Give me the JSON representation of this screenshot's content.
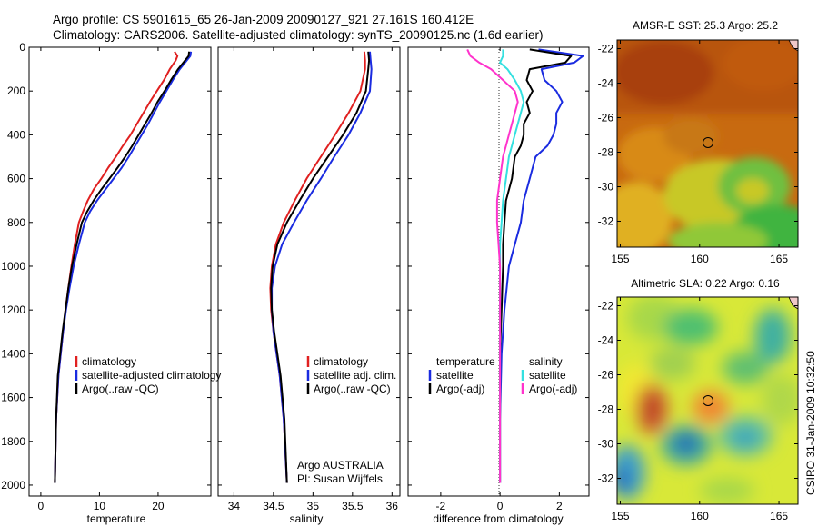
{
  "header": {
    "line1": "Argo profile: CS 5901615_65 26-Jan-2009 20090127_921 27.161S 160.412E",
    "line2": "Climatology: CARS2006. Satellite-adjusted climatology: synTS_20090125.nc (1.6d earlier)"
  },
  "side_credit": "CSIRO 31-Jan-2009 10:32:50",
  "colors": {
    "climatology": "#e02020",
    "satellite": "#1a2be0",
    "argo": "#000000",
    "argo_salinity_diff": "#ff33cc",
    "satellite_salinity_diff": "#33e0e0"
  },
  "chart_data": [
    {
      "type": "line",
      "panel": "temperature",
      "xlabel": "temperature",
      "ylabel": "",
      "xlim": [
        -2,
        29
      ],
      "ylim": [
        2050,
        0
      ],
      "xticks": [
        "0",
        "10",
        "20"
      ],
      "yticks": [
        "0",
        "200",
        "400",
        "600",
        "800",
        "1000",
        "1200",
        "1400",
        "1600",
        "1800",
        "2000"
      ],
      "legend": [
        "climatology",
        "satellite-adjusted climatology",
        "Argo(..raw -QC)"
      ],
      "series": [
        {
          "name": "climatology",
          "color": "#e02020",
          "x": [
            22.8,
            23.3,
            23.0,
            22.0,
            21.0,
            19.8,
            18.6,
            17.5,
            16.4,
            15.3,
            14.0,
            12.8,
            11.5,
            10.3,
            9.0,
            8.0,
            7.2,
            6.5,
            5.8,
            5.2,
            4.7,
            4.2,
            3.8,
            3.4,
            3.0,
            2.6,
            2.4
          ],
          "y": [
            20,
            40,
            60,
            100,
            150,
            200,
            250,
            300,
            350,
            400,
            450,
            500,
            550,
            600,
            650,
            700,
            750,
            800,
            900,
            1000,
            1100,
            1200,
            1300,
            1400,
            1500,
            1700,
            1990
          ]
        },
        {
          "name": "satellite-adjusted climatology",
          "color": "#1a2be0",
          "x": [
            25.6,
            25.5,
            24.9,
            23.7,
            22.5,
            21.4,
            20.3,
            19.3,
            18.3,
            17.2,
            16.1,
            15.0,
            13.8,
            12.4,
            11.0,
            9.6,
            8.4,
            7.5,
            6.5,
            5.6,
            4.9,
            4.3,
            3.8,
            3.4,
            3.0,
            2.6,
            2.4
          ],
          "y": [
            20,
            40,
            60,
            100,
            150,
            200,
            250,
            300,
            350,
            400,
            450,
            500,
            550,
            600,
            650,
            700,
            750,
            800,
            900,
            1000,
            1100,
            1200,
            1300,
            1400,
            1500,
            1700,
            1990
          ]
        },
        {
          "name": "Argo(..raw -QC)",
          "color": "#000000",
          "x": [
            25.3,
            25.2,
            24.6,
            23.4,
            22.2,
            21.1,
            19.9,
            18.9,
            17.8,
            16.7,
            15.6,
            14.4,
            13.1,
            11.7,
            10.3,
            9.0,
            7.9,
            7.0,
            6.1,
            5.3,
            4.7,
            4.2,
            3.7,
            3.3,
            2.9,
            2.6,
            2.4
          ],
          "y": [
            20,
            40,
            60,
            100,
            150,
            200,
            250,
            300,
            350,
            400,
            450,
            500,
            550,
            600,
            650,
            700,
            750,
            800,
            900,
            1000,
            1100,
            1200,
            1300,
            1400,
            1500,
            1700,
            1990
          ]
        }
      ]
    },
    {
      "type": "line",
      "panel": "salinity",
      "xlabel": "salinity",
      "ylabel": "",
      "xlim": [
        33.8,
        36.1
      ],
      "ylim": [
        2050,
        0
      ],
      "xticks": [
        "34",
        "34.5",
        "35",
        "35.5",
        "36"
      ],
      "legend": [
        "climatology",
        "satellite adj. clim.",
        "Argo(..raw -QC)"
      ],
      "annotation": [
        "Argo AUSTRALIA",
        "PI: Susan Wijffels"
      ],
      "series": [
        {
          "name": "climatology",
          "color": "#e02020",
          "x": [
            35.65,
            35.66,
            35.66,
            35.6,
            35.45,
            35.28,
            35.1,
            34.92,
            34.77,
            34.63,
            34.53,
            34.48,
            34.46,
            34.47,
            34.5,
            34.54,
            34.58,
            34.63,
            34.67
          ],
          "y": [
            20,
            60,
            100,
            200,
            300,
            400,
            500,
            600,
            700,
            800,
            900,
            1000,
            1100,
            1200,
            1300,
            1400,
            1500,
            1700,
            1990
          ]
        },
        {
          "name": "satellite adj. clim.",
          "color": "#1a2be0",
          "x": [
            35.72,
            35.73,
            35.74,
            35.72,
            35.6,
            35.45,
            35.27,
            35.1,
            34.92,
            34.76,
            34.61,
            34.52,
            34.48,
            34.48,
            34.5,
            34.54,
            34.58,
            34.63,
            34.67
          ],
          "y": [
            20,
            60,
            100,
            200,
            300,
            400,
            500,
            600,
            700,
            800,
            900,
            1000,
            1100,
            1200,
            1300,
            1400,
            1500,
            1700,
            1990
          ]
        },
        {
          "name": "Argo(..raw -QC)",
          "color": "#000000",
          "x": [
            35.7,
            35.71,
            35.7,
            35.67,
            35.55,
            35.38,
            35.19,
            35.0,
            34.83,
            34.67,
            34.55,
            34.49,
            34.47,
            34.48,
            34.51,
            34.55,
            34.59,
            34.64,
            34.67
          ],
          "y": [
            20,
            60,
            100,
            200,
            300,
            400,
            500,
            600,
            700,
            800,
            900,
            1000,
            1100,
            1200,
            1300,
            1400,
            1500,
            1700,
            1990
          ]
        }
      ]
    },
    {
      "type": "line",
      "panel": "difference",
      "xlabel": "difference from climatology",
      "ylabel": "",
      "xlim": [
        -3.1,
        3.0
      ],
      "ylim": [
        2050,
        0
      ],
      "xticks": [
        "-2",
        "0",
        "2"
      ],
      "legend_left_title": "temperature",
      "legend_right_title": "salinity",
      "legend_left": [
        "satellite",
        "Argo(-adj)"
      ],
      "legend_right": [
        "satellite",
        "Argo(-adj)"
      ],
      "series": [
        {
          "name": "temperature satellite",
          "color": "#1a2be0",
          "x": [
            1.3,
            2.8,
            2.5,
            1.4,
            1.5,
            1.9,
            2.1,
            1.9,
            1.9,
            1.8,
            1.6,
            1.2,
            1.0,
            0.8,
            0.7,
            0.5,
            0.3,
            0.15,
            0.05,
            0.0,
            0.0
          ],
          "y": [
            10,
            40,
            70,
            100,
            150,
            200,
            250,
            300,
            350,
            400,
            450,
            500,
            600,
            700,
            800,
            900,
            1000,
            1200,
            1400,
            1700,
            1990
          ]
        },
        {
          "name": "temperature Argo(-adj)",
          "color": "#000000",
          "x": [
            1.0,
            2.4,
            2.2,
            1.0,
            0.9,
            1.1,
            0.9,
            1.0,
            0.8,
            0.8,
            0.7,
            0.5,
            0.4,
            0.2,
            0.15,
            0.1,
            0.1,
            0.05,
            0.0,
            0.0,
            0.0
          ],
          "y": [
            10,
            40,
            70,
            100,
            150,
            200,
            250,
            300,
            350,
            400,
            450,
            500,
            600,
            700,
            800,
            900,
            1000,
            1200,
            1400,
            1700,
            1990
          ]
        },
        {
          "name": "salinity satellite",
          "color": "#33e0e0",
          "x": [
            0.1,
            0.1,
            0.0,
            0.25,
            0.5,
            0.7,
            0.8,
            0.7,
            0.6,
            0.5,
            0.4,
            0.3,
            0.2,
            0.1,
            0.05,
            0.0,
            0.0,
            0.0,
            0.0,
            0.0,
            0.0
          ],
          "y": [
            10,
            40,
            70,
            100,
            150,
            200,
            250,
            300,
            350,
            400,
            450,
            500,
            600,
            700,
            800,
            900,
            1000,
            1200,
            1400,
            1700,
            1990
          ]
        },
        {
          "name": "salinity Argo(-adj)",
          "color": "#ff33cc",
          "x": [
            -1.1,
            -1.0,
            -0.7,
            -0.3,
            0.1,
            0.5,
            0.6,
            0.5,
            0.4,
            0.3,
            0.2,
            0.1,
            0.0,
            -0.1,
            -0.1,
            -0.05,
            0.0,
            0.0,
            0.0,
            0.0,
            0.0
          ],
          "y": [
            10,
            40,
            70,
            100,
            150,
            200,
            250,
            300,
            350,
            400,
            450,
            500,
            600,
            700,
            800,
            900,
            1000,
            1200,
            1400,
            1700,
            1990
          ]
        }
      ]
    },
    {
      "type": "heatmap",
      "panel": "sst_map",
      "title": "AMSR-E SST: 25.3 Argo: 25.2",
      "xlim": [
        154.8,
        166.2
      ],
      "ylim": [
        -33.5,
        -21.5
      ],
      "xticks": [
        "155",
        "160",
        "165"
      ],
      "yticks": [
        "-22",
        "-24",
        "-26",
        "-28",
        "-30",
        "-32"
      ],
      "marker": {
        "lon": 160.412,
        "lat": -27.161
      }
    },
    {
      "type": "heatmap",
      "panel": "sla_map",
      "title": "Altimetric SLA: 0.22 Argo: 0.16",
      "xlim": [
        154.8,
        166.2
      ],
      "ylim": [
        -33.5,
        -21.5
      ],
      "xticks": [
        "155",
        "160",
        "165"
      ],
      "yticks": [
        "-22",
        "-24",
        "-26",
        "-28",
        "-30",
        "-32"
      ],
      "marker": {
        "lon": 160.412,
        "lat": -27.161
      }
    }
  ]
}
